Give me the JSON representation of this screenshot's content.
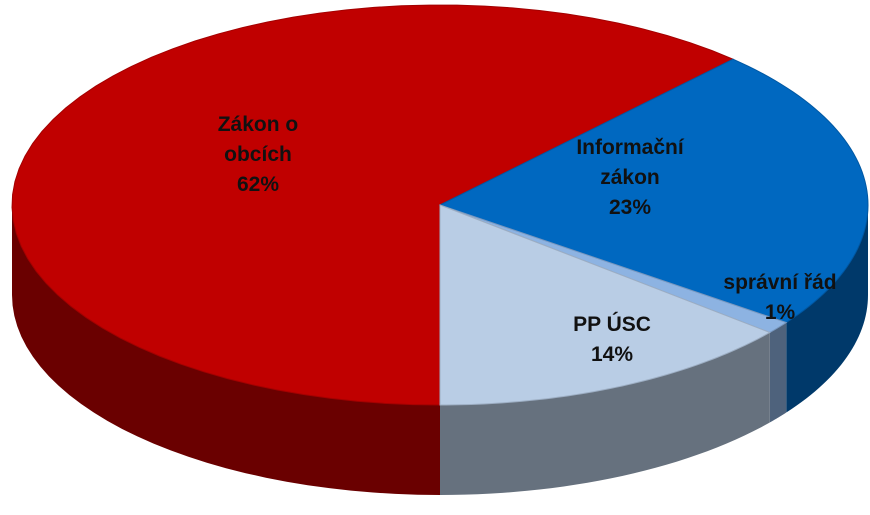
{
  "chart_data": {
    "type": "pie",
    "categories": [
      "Zákon o obcích",
      "Informační zákon",
      "správní řád",
      "PP ÚSC"
    ],
    "values": [
      62,
      23,
      1,
      14
    ],
    "value_labels": [
      "62%",
      "23%",
      "1%",
      "14%"
    ],
    "colors": [
      "#c00000",
      "#0068c0",
      "#8db3e2",
      "#b9cde5"
    ]
  }
}
